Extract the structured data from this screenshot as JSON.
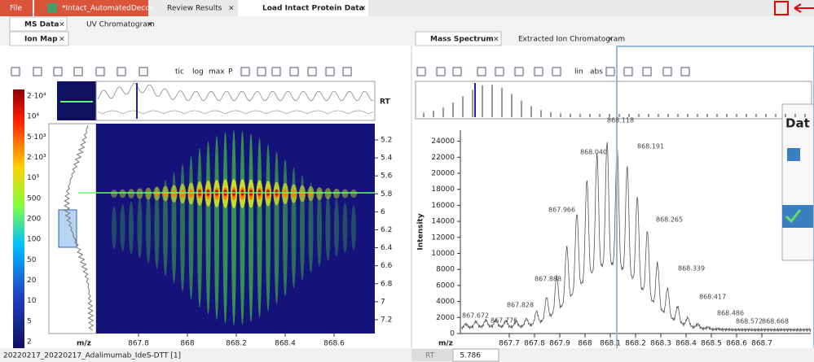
{
  "tabs": [
    "File",
    "*Intact_AutomatedDecon...",
    "Review Results",
    "Load Intact Protein Data"
  ],
  "subtabs": [
    "MS Data",
    "UV Chromatogram"
  ],
  "left_panel": {
    "tab": "Ion Map",
    "toolbar": [
      "tic",
      "log",
      "max",
      "P"
    ],
    "scale_labels": [
      "2·10⁴",
      "10⁴",
      "5·10³",
      "2·10³",
      "10³",
      "500",
      "200",
      "100",
      "50",
      "20",
      "10",
      "5",
      "2"
    ],
    "rt_header": "RT",
    "rt_labels": [
      "5.2",
      "5.4",
      "5.6",
      "5.8",
      "6",
      "6.2",
      "6.4",
      "6.6",
      "6.8",
      "7",
      "7.2"
    ],
    "x_axis_label": "m/z",
    "x_labels": [
      "867.8",
      "868",
      "868.2",
      "868.4",
      "868.6"
    ]
  },
  "right_panel": {
    "tabs": [
      "Mass Spectrum",
      "Extracted Ion Chromatogram"
    ],
    "toolbar": [
      "lin",
      "abs"
    ],
    "y_axis_label": "Intensity",
    "y_labels": [
      "0",
      "2000",
      "4000",
      "6000",
      "8000",
      "10000",
      "12000",
      "14000",
      "16000",
      "18000",
      "20000",
      "22000",
      "24000"
    ],
    "x_axis_label": "m/z",
    "x_labels": [
      "867.7",
      "867.8",
      "867.9",
      "868",
      "868.1",
      "868.2",
      "868.3",
      "868.4",
      "868.5",
      "868.6",
      "868.7"
    ],
    "peak_labels": [
      "867.672",
      "867.776",
      "867.828",
      "867.888",
      "867.966",
      "868.040",
      "868.118",
      "868.191",
      "868.265",
      "868.339",
      "868.417",
      "868.486",
      "868.572",
      "868.668"
    ]
  },
  "popup": {
    "title": "Dat"
  },
  "status": {
    "file": "20220217_20220217_Adalimumab_IdeS-DTT [1]",
    "rt_label": "RT",
    "rt_value": "5.786"
  }
}
